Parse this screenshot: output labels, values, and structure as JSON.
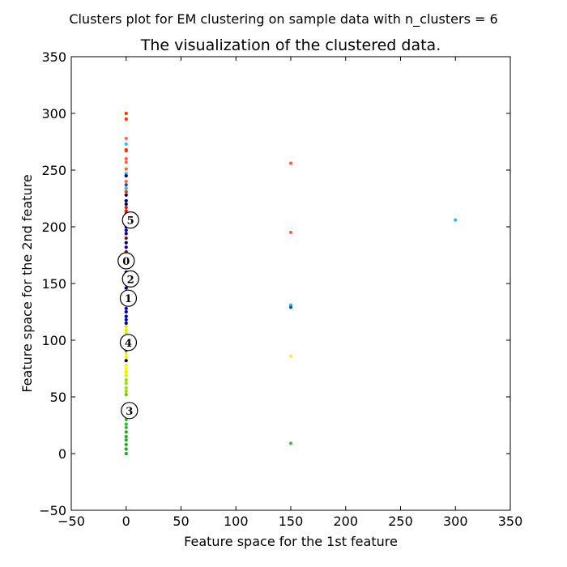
{
  "chart_data": {
    "type": "scatter",
    "suptitle": "Clusters plot for EM clustering on sample data with n_clusters = 6",
    "title": "The visualization of the clustered data.",
    "xlabel": "Feature space for the 1st feature",
    "ylabel": "Feature space for the 2nd feature",
    "xlim": [
      -50,
      350
    ],
    "ylim": [
      -50,
      350
    ],
    "xticks": [
      -50,
      0,
      50,
      100,
      150,
      200,
      250,
      300,
      350
    ],
    "yticks": [
      -50,
      0,
      50,
      100,
      150,
      200,
      250,
      300,
      350
    ],
    "xtick_labels": [
      "−50",
      "0",
      "50",
      "100",
      "150",
      "200",
      "250",
      "300",
      "350"
    ],
    "ytick_labels": [
      "−50",
      "0",
      "50",
      "100",
      "150",
      "200",
      "250",
      "300",
      "350"
    ],
    "grid": false,
    "points": [
      {
        "x": 0,
        "y": 300,
        "color": "#ff3300"
      },
      {
        "x": 0,
        "y": 295,
        "color": "#ff3300"
      },
      {
        "x": 0,
        "y": 278,
        "color": "#ff6644"
      },
      {
        "x": 0,
        "y": 273,
        "color": "#33bbdd"
      },
      {
        "x": 0,
        "y": 268,
        "color": "#ff3300"
      },
      {
        "x": 0,
        "y": 267,
        "color": "#ff3300"
      },
      {
        "x": 0,
        "y": 260,
        "color": "#ff6644"
      },
      {
        "x": 0,
        "y": 257,
        "color": "#ff6644"
      },
      {
        "x": 0,
        "y": 251,
        "color": "#ff6644"
      },
      {
        "x": 0,
        "y": 247,
        "color": "#33bbdd"
      },
      {
        "x": 0,
        "y": 245,
        "color": "#000066"
      },
      {
        "x": 0,
        "y": 240,
        "color": "#ff6644"
      },
      {
        "x": 0,
        "y": 237,
        "color": "#1155aa"
      },
      {
        "x": 0,
        "y": 234,
        "color": "#33bbdd"
      },
      {
        "x": 0,
        "y": 231,
        "color": "#ff3300"
      },
      {
        "x": 0,
        "y": 228,
        "color": "#000066"
      },
      {
        "x": 0,
        "y": 223,
        "color": "#000066"
      },
      {
        "x": 0,
        "y": 220,
        "color": "#000066"
      },
      {
        "x": 0,
        "y": 217,
        "color": "#cc2200"
      },
      {
        "x": 0,
        "y": 214,
        "color": "#cc2200"
      },
      {
        "x": 0,
        "y": 212,
        "color": "#cc2200"
      },
      {
        "x": 0,
        "y": 209,
        "color": "#881100"
      },
      {
        "x": 0,
        "y": 206,
        "color": "#881100"
      },
      {
        "x": 0,
        "y": 203,
        "color": "#000066"
      },
      {
        "x": 0,
        "y": 200,
        "color": "#0000aa"
      },
      {
        "x": 0,
        "y": 197,
        "color": "#0000aa"
      },
      {
        "x": 0,
        "y": 194,
        "color": "#000066"
      },
      {
        "x": 0,
        "y": 190,
        "color": "#881100"
      },
      {
        "x": 0,
        "y": 186,
        "color": "#000066"
      },
      {
        "x": 0,
        "y": 182,
        "color": "#0000aa"
      },
      {
        "x": 0,
        "y": 178,
        "color": "#881100"
      },
      {
        "x": 0,
        "y": 174,
        "color": "#000066"
      },
      {
        "x": 0,
        "y": 164,
        "color": "#000066"
      },
      {
        "x": 0,
        "y": 160,
        "color": "#000066"
      },
      {
        "x": 0,
        "y": 155,
        "color": "#0000aa"
      },
      {
        "x": 0,
        "y": 150,
        "color": "#000066"
      },
      {
        "x": 0,
        "y": 146,
        "color": "#000066"
      },
      {
        "x": 0,
        "y": 132,
        "color": "#0000aa"
      },
      {
        "x": 0,
        "y": 128,
        "color": "#0000aa"
      },
      {
        "x": 0,
        "y": 125,
        "color": "#0000aa"
      },
      {
        "x": 0,
        "y": 121,
        "color": "#0000aa"
      },
      {
        "x": 0,
        "y": 118,
        "color": "#0000aa"
      },
      {
        "x": 0,
        "y": 115,
        "color": "#0000aa"
      },
      {
        "x": 0,
        "y": 112,
        "color": "#ddee00"
      },
      {
        "x": 0,
        "y": 109,
        "color": "#ddee00"
      },
      {
        "x": 0,
        "y": 106,
        "color": "#ddee00"
      },
      {
        "x": 0,
        "y": 91,
        "color": "#1155aa"
      },
      {
        "x": 0,
        "y": 88,
        "color": "#ffee00"
      },
      {
        "x": 0,
        "y": 85,
        "color": "#ffee00"
      },
      {
        "x": 0,
        "y": 82,
        "color": "#000066"
      },
      {
        "x": 0,
        "y": 78,
        "color": "#ffee00"
      },
      {
        "x": 0,
        "y": 75,
        "color": "#ffee00"
      },
      {
        "x": 0,
        "y": 72,
        "color": "#ddee00"
      },
      {
        "x": 0,
        "y": 69,
        "color": "#ddee00"
      },
      {
        "x": 0,
        "y": 65,
        "color": "#99dd00"
      },
      {
        "x": 0,
        "y": 62,
        "color": "#99dd00"
      },
      {
        "x": 0,
        "y": 58,
        "color": "#99dd00"
      },
      {
        "x": 0,
        "y": 55,
        "color": "#99dd00"
      },
      {
        "x": 0,
        "y": 52,
        "color": "#66cc00"
      },
      {
        "x": 0,
        "y": 30,
        "color": "#33bb33"
      },
      {
        "x": 0,
        "y": 26,
        "color": "#33bb33"
      },
      {
        "x": 0,
        "y": 23,
        "color": "#33bb33"
      },
      {
        "x": 0,
        "y": 19,
        "color": "#22aa22"
      },
      {
        "x": 0,
        "y": 15,
        "color": "#22aa22"
      },
      {
        "x": 0,
        "y": 12,
        "color": "#22aa22"
      },
      {
        "x": 0,
        "y": 8,
        "color": "#22aa22"
      },
      {
        "x": 0,
        "y": 4,
        "color": "#22aa22"
      },
      {
        "x": 0,
        "y": 0,
        "color": "#22aa22"
      },
      {
        "x": 150,
        "y": 256,
        "color": "#ff6644"
      },
      {
        "x": 150,
        "y": 195,
        "color": "#ff6644"
      },
      {
        "x": 150,
        "y": 131,
        "color": "#33bbdd"
      },
      {
        "x": 150,
        "y": 129,
        "color": "#1155aa"
      },
      {
        "x": 150,
        "y": 86,
        "color": "#eeee44"
      },
      {
        "x": 150,
        "y": 9,
        "color": "#44bb44"
      },
      {
        "x": 300,
        "y": 206,
        "color": "#33bbdd"
      }
    ],
    "centers": [
      {
        "label": "0",
        "x": 0,
        "y": 170
      },
      {
        "label": "1",
        "x": 2,
        "y": 137
      },
      {
        "label": "2",
        "x": 4,
        "y": 154
      },
      {
        "label": "3",
        "x": 3,
        "y": 38
      },
      {
        "label": "4",
        "x": 2,
        "y": 98
      },
      {
        "label": "5",
        "x": 4,
        "y": 206
      }
    ]
  }
}
